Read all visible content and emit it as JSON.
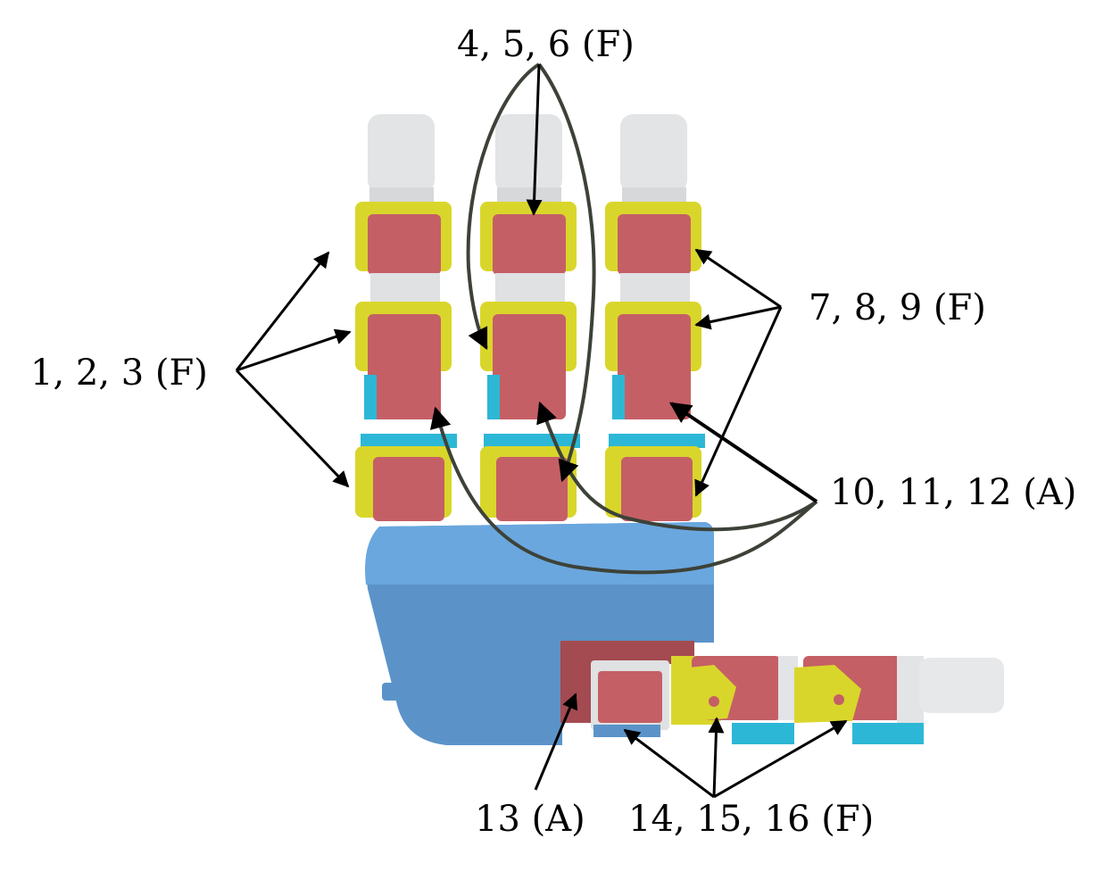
{
  "labels": {
    "group_1_2_3": "1, 2, 3 (F)",
    "group_4_5_6": "4, 5, 6 (F)",
    "group_7_8_9": "7, 8, 9 (F)",
    "group_10_11_12": "10, 11, 12 (A)",
    "group_13": "13 (A)",
    "group_14_15_16": "14, 15, 16 (F)"
  },
  "colors": {
    "palm": "#5b93c9",
    "palm_light": "#6aa7de",
    "servo": "#c55f66",
    "servo_dark": "#a44a51",
    "bracket": "#d9d62b",
    "fingertip": "#e2e4e5",
    "connector": "#2db7d6",
    "flex_arrow": "#000000",
    "abduction_arrow": "#3d4238"
  }
}
